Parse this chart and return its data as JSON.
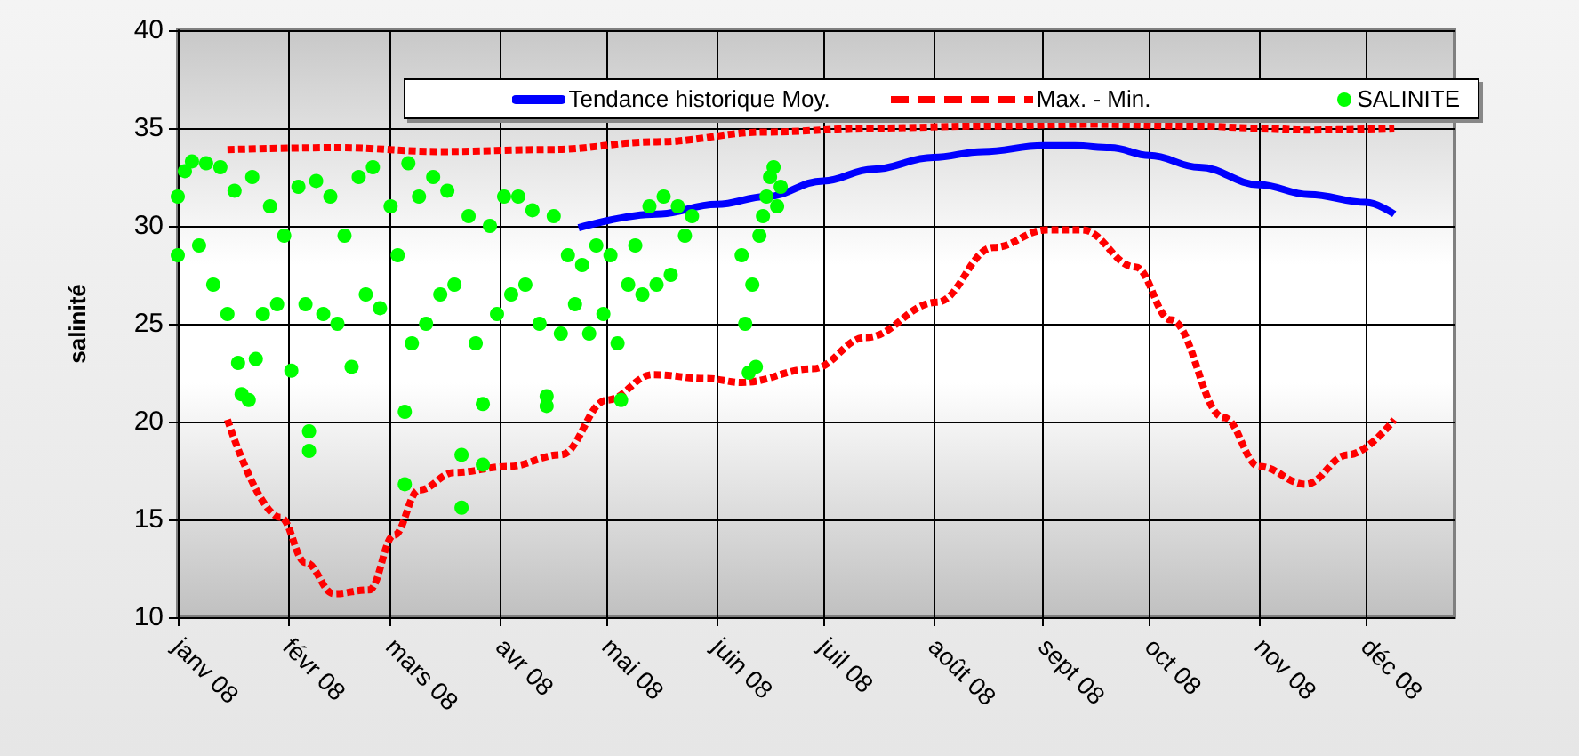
{
  "chart_data": {
    "type": "line",
    "ylabel": "salinité",
    "xlim": [
      "2008-01-01",
      "2008-12-26"
    ],
    "xticks": [
      {
        "value": "2008-01-01",
        "label": "janv 08"
      },
      {
        "value": "2008-02-01",
        "label": "févr 08"
      },
      {
        "value": "2008-03-01",
        "label": "mars 08"
      },
      {
        "value": "2008-04-01",
        "label": "avr 08"
      },
      {
        "value": "2008-05-01",
        "label": "mai 08"
      },
      {
        "value": "2008-06-01",
        "label": "juin 08"
      },
      {
        "value": "2008-07-01",
        "label": "juil 08"
      },
      {
        "value": "2008-08-01",
        "label": "août 08"
      },
      {
        "value": "2008-09-01",
        "label": "sept 08"
      },
      {
        "value": "2008-10-01",
        "label": "oct 08"
      },
      {
        "value": "2008-11-01",
        "label": "nov 08"
      },
      {
        "value": "2008-12-01",
        "label": "déc 08"
      }
    ],
    "ylim": [
      10,
      40
    ],
    "yticks": [
      10,
      15,
      20,
      25,
      30,
      35,
      40
    ],
    "grid": true,
    "legend": "top right",
    "series": [
      {
        "name": "Tendance historique Moy.",
        "color": "#0000ff",
        "marker": "none",
        "line_style": "solid",
        "x": [
          "2008-04-23",
          "2008-05-15",
          "2008-06-01",
          "2008-06-15",
          "2008-07-01",
          "2008-07-15",
          "2008-08-01",
          "2008-08-15",
          "2008-09-01",
          "2008-09-10",
          "2008-09-20",
          "2008-10-01",
          "2008-10-15",
          "2008-11-01",
          "2008-11-15",
          "2008-12-01",
          "2008-12-09"
        ],
        "values": [
          29.9,
          30.6,
          31.1,
          31.5,
          32.3,
          32.9,
          33.5,
          33.8,
          34.1,
          34.1,
          34.0,
          33.6,
          33.0,
          32.1,
          31.6,
          31.2,
          30.6
        ]
      },
      {
        "name": "Max. - Min.",
        "color": "#ff0000",
        "marker": "none",
        "line_style": "dashed",
        "x": [
          "2008-01-15",
          "2008-02-15",
          "2008-03-15",
          "2008-04-15",
          "2008-05-15",
          "2008-06-15",
          "2008-07-15",
          "2008-08-15",
          "2008-09-15",
          "2008-10-15",
          "2008-11-01",
          "2008-11-15",
          "2008-12-09"
        ],
        "values": [
          33.9,
          34.0,
          33.8,
          33.9,
          34.3,
          34.8,
          35.0,
          35.1,
          35.2,
          35.1,
          35.0,
          34.9,
          35.0
        ]
      },
      {
        "color": "#ff0000",
        "marker": "none",
        "line_style": "dashed",
        "x": [
          "2008-01-15",
          "2008-01-30",
          "2008-02-06",
          "2008-02-14",
          "2008-02-24",
          "2008-03-02",
          "2008-03-09",
          "2008-03-19",
          "2008-04-03",
          "2008-04-18",
          "2008-05-01",
          "2008-05-14",
          "2008-05-29",
          "2008-06-08",
          "2008-06-28",
          "2008-07-13",
          "2008-08-02",
          "2008-08-18",
          "2008-09-02",
          "2008-09-12",
          "2008-09-27",
          "2008-10-07",
          "2008-10-22",
          "2008-11-01",
          "2008-11-14",
          "2008-11-26",
          "2008-12-09"
        ],
        "values": [
          20.1,
          15.1,
          12.8,
          11.2,
          11.4,
          14.2,
          16.5,
          17.4,
          17.7,
          18.3,
          21.1,
          22.4,
          22.2,
          22.0,
          22.7,
          24.3,
          26.1,
          28.9,
          29.8,
          29.8,
          27.9,
          25.2,
          20.2,
          17.7,
          16.8,
          18.3,
          20.1
        ]
      },
      {
        "name": "SALINITE",
        "type": "scatter",
        "color": "#00ff00",
        "marker": "circle",
        "x": [
          "2008-01-01",
          "2008-01-01",
          "2008-01-03",
          "2008-01-05",
          "2008-01-07",
          "2008-01-09",
          "2008-01-11",
          "2008-01-13",
          "2008-01-15",
          "2008-01-17",
          "2008-01-18",
          "2008-01-19",
          "2008-01-21",
          "2008-01-22",
          "2008-01-23",
          "2008-01-25",
          "2008-01-27",
          "2008-01-29",
          "2008-01-31",
          "2008-02-02",
          "2008-02-04",
          "2008-02-06",
          "2008-02-07",
          "2008-02-07",
          "2008-02-09",
          "2008-02-11",
          "2008-02-13",
          "2008-02-15",
          "2008-02-17",
          "2008-02-19",
          "2008-02-21",
          "2008-02-23",
          "2008-02-25",
          "2008-02-27",
          "2008-03-01",
          "2008-03-03",
          "2008-03-05",
          "2008-03-05",
          "2008-03-06",
          "2008-03-07",
          "2008-03-09",
          "2008-03-11",
          "2008-03-13",
          "2008-03-15",
          "2008-03-17",
          "2008-03-19",
          "2008-03-21",
          "2008-03-21",
          "2008-03-23",
          "2008-03-25",
          "2008-03-27",
          "2008-03-27",
          "2008-03-29",
          "2008-03-31",
          "2008-04-02",
          "2008-04-04",
          "2008-04-06",
          "2008-04-08",
          "2008-04-10",
          "2008-04-12",
          "2008-04-14",
          "2008-04-14",
          "2008-04-16",
          "2008-04-18",
          "2008-04-20",
          "2008-04-22",
          "2008-04-24",
          "2008-04-26",
          "2008-04-28",
          "2008-04-30",
          "2008-05-02",
          "2008-05-04",
          "2008-05-05",
          "2008-05-07",
          "2008-05-09",
          "2008-05-11",
          "2008-05-13",
          "2008-05-15",
          "2008-05-17",
          "2008-05-19",
          "2008-05-21",
          "2008-05-23",
          "2008-05-25",
          "2008-06-08",
          "2008-06-09",
          "2008-06-10",
          "2008-06-11",
          "2008-06-12",
          "2008-06-13",
          "2008-06-14",
          "2008-06-15",
          "2008-06-16",
          "2008-06-17",
          "2008-06-18",
          "2008-06-19"
        ],
        "values": [
          28.5,
          31.5,
          32.8,
          33.3,
          29.0,
          33.2,
          27.0,
          33.0,
          25.5,
          31.8,
          23.0,
          21.4,
          21.1,
          32.5,
          23.2,
          25.5,
          31.0,
          26.0,
          29.5,
          22.6,
          32.0,
          26.0,
          19.5,
          18.5,
          32.3,
          25.5,
          31.5,
          25.0,
          29.5,
          22.8,
          32.5,
          26.5,
          33.0,
          25.8,
          31.0,
          28.5,
          16.8,
          20.5,
          33.2,
          24.0,
          31.5,
          25.0,
          32.5,
          26.5,
          31.8,
          27.0,
          15.6,
          18.3,
          30.5,
          24.0,
          20.9,
          17.8,
          30.0,
          25.5,
          31.5,
          26.5,
          31.5,
          27.0,
          30.8,
          25.0,
          21.3,
          20.8,
          30.5,
          24.5,
          28.5,
          26.0,
          28.0,
          24.5,
          29.0,
          25.5,
          28.5,
          24.0,
          21.1,
          27.0,
          29.0,
          26.5,
          31.0,
          27.0,
          31.5,
          27.5,
          31.0,
          29.5,
          30.5,
          28.5,
          25.0,
          22.5,
          27.0,
          22.8,
          29.5,
          30.5,
          31.5,
          32.5,
          33.0,
          31.0,
          32.0
        ]
      }
    ]
  }
}
